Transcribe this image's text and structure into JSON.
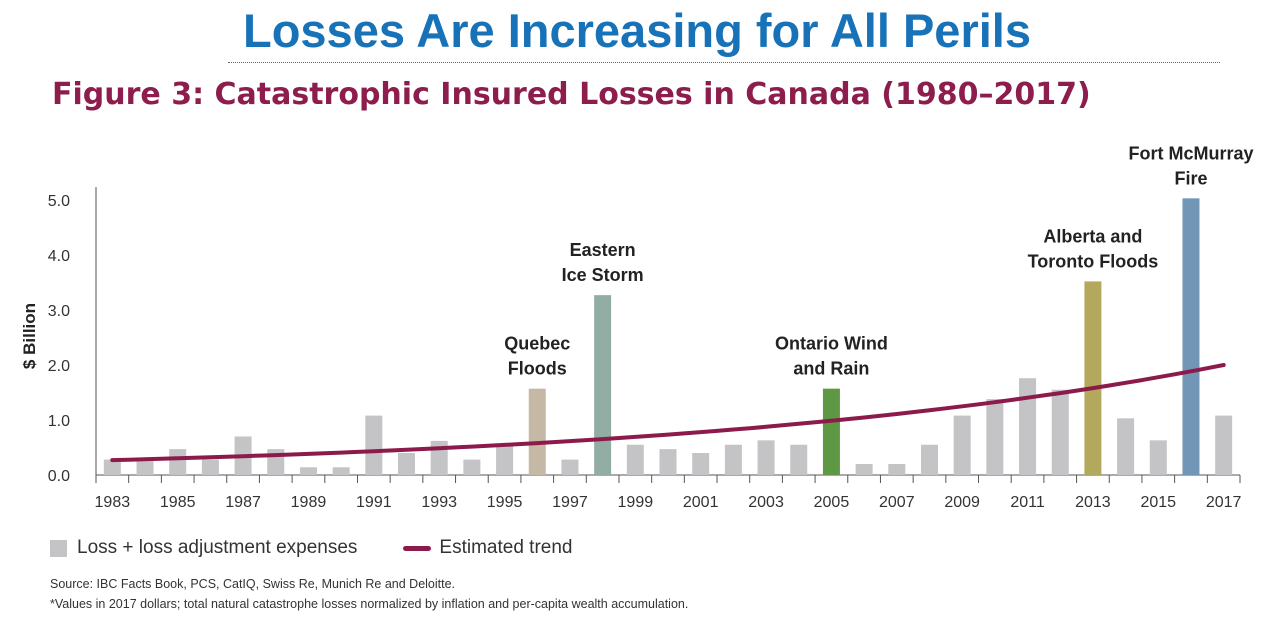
{
  "banner": {
    "title": "Losses Are Increasing for All Perils"
  },
  "figure": {
    "title": "Figure 3: Catastrophic Insured Losses in Canada (1980–2017)"
  },
  "legend": {
    "bars": "Loss + loss adjustment expenses",
    "trend": "Estimated trend"
  },
  "source": {
    "line1": "Source: IBC Facts Book, PCS, CatIQ, Swiss Re, Munich Re and Deloitte.",
    "line2": "*Values in 2017 dollars; total natural catastrophe losses normalized by inflation and per-capita wealth accumulation."
  },
  "colors": {
    "bar_default": "#c4c3c5",
    "trend": "#8c1a4b",
    "banner": "#1772b8",
    "figure_title": "#8c1d4c"
  },
  "chart_data": {
    "type": "bar",
    "ylabel": "$ Billion",
    "xlabel": "",
    "ylim": [
      0,
      5.0
    ],
    "yticks": [
      "0.0",
      "1.0",
      "2.0",
      "3.0",
      "4.0",
      "5.0"
    ],
    "xtick_labels": [
      "1983",
      "1985",
      "1987",
      "1989",
      "1991",
      "1993",
      "1995",
      "1997",
      "1999",
      "2001",
      "2003",
      "2005",
      "2007",
      "2009",
      "2011",
      "2013",
      "2015",
      "2017"
    ],
    "grid": false,
    "legend_position": "bottom-left",
    "categories": [
      "1983",
      "1984",
      "1985",
      "1986",
      "1987",
      "1988",
      "1989",
      "1990",
      "1991",
      "1992",
      "1993",
      "1994",
      "1995",
      "1996",
      "1997",
      "1998",
      "1999",
      "2000",
      "2001",
      "2002",
      "2003",
      "2004",
      "2005",
      "2006",
      "2007",
      "2008",
      "2009",
      "2010",
      "2011",
      "2012",
      "2013",
      "2014",
      "2015",
      "2016",
      "2017"
    ],
    "series": [
      {
        "name": "Loss + loss adjustment expenses",
        "values": [
          0.28,
          0.25,
          0.47,
          0.28,
          0.7,
          0.47,
          0.14,
          0.14,
          1.08,
          0.4,
          0.62,
          0.28,
          0.55,
          1.57,
          0.28,
          3.27,
          0.55,
          0.47,
          0.4,
          0.55,
          0.63,
          0.55,
          1.57,
          0.2,
          0.2,
          0.55,
          1.08,
          1.38,
          1.76,
          1.55,
          3.52,
          1.03,
          0.63,
          5.03,
          1.08
        ]
      },
      {
        "name": "Estimated trend",
        "type": "line",
        "x": [
          "1983",
          "2017"
        ],
        "values": [
          0.27,
          2.0
        ]
      }
    ],
    "highlight_colors": {
      "1996": "#c5b8a5",
      "1998": "#92ada3",
      "2005": "#5e9845",
      "2013": "#b3a95d",
      "2016": "#7196b6"
    },
    "annotations": [
      {
        "year": "1996",
        "lines": [
          "Quebec",
          "Floods"
        ]
      },
      {
        "year": "1998",
        "lines": [
          "Eastern",
          "Ice Storm"
        ]
      },
      {
        "year": "2005",
        "lines": [
          "Ontario Wind",
          "and Rain"
        ]
      },
      {
        "year": "2013",
        "lines": [
          "Alberta and",
          "Toronto Floods"
        ]
      },
      {
        "year": "2016",
        "lines": [
          "Fort McMurray",
          "Fire"
        ]
      }
    ]
  }
}
